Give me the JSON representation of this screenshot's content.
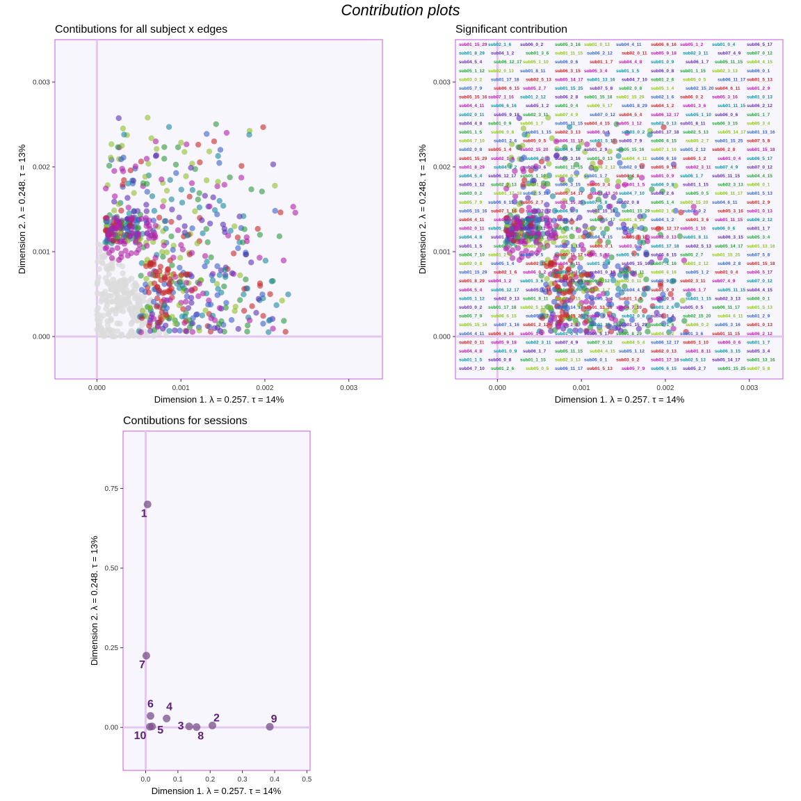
{
  "figure": {
    "title": "Contribution plots"
  },
  "chart_data": [
    {
      "id": "all",
      "type": "scatter",
      "title": "Contibutions for all subject x edges",
      "xlabel": "Dimension 1.   λ = 0.257.  τ = 14%",
      "ylabel": "Dimension 2.   λ = 0.248.  τ = 13%",
      "xlim": [
        -0.0005,
        0.0034
      ],
      "ylim": [
        -0.0005,
        0.0035
      ],
      "xticks": [
        "0.000",
        "0.001",
        "0.002",
        "0.003"
      ],
      "yticks": [
        "0.000",
        "0.001",
        "0.002",
        "0.003"
      ],
      "grid": false,
      "colors": [
        "#b21fa8",
        "#3a5fc8",
        "#2c9a3c",
        "#19879e",
        "#c62828",
        "#8fbf2a",
        "#5b2fb0"
      ],
      "grey_color": "#dcdcdc"
    },
    {
      "id": "sig",
      "type": "scatter",
      "title": "Significant contribution",
      "xlabel": "Dimension 1.   λ = 0.257.  τ = 14%",
      "ylabel": "Dimension 2.   λ = 0.248.  τ = 13%",
      "xlim": [
        -0.0005,
        0.0034
      ],
      "ylim": [
        -0.0005,
        0.0035
      ],
      "xticks": [
        "0.000",
        "0.001",
        "0.002",
        "0.003"
      ],
      "yticks": [
        "0.000",
        "0.001",
        "0.002",
        "0.003"
      ],
      "grid": false,
      "sample_labels": [
        "sub01_15_29",
        "sub02_1_6",
        "sub06_0_2",
        "sub05_3_16",
        "sub01_0_13",
        "sub04_4_11",
        "sub06_6_16",
        "sub05_1_2",
        "sub01_0_4",
        "sub06_5_17",
        "sub01_8_29",
        "sub04_1_2",
        "sub01_3_6",
        "sub01_11_15",
        "sub06_2_12",
        "sub02_0_11",
        "sub05_9_18",
        "sub02_3_11",
        "sub07_4_9",
        "sub07_0_12",
        "sub04_5_4",
        "sub06_12_17",
        "sub05_1_10",
        "sub06_0_6",
        "sub01_1_7",
        "sub04_4_8",
        "sub01_0_9",
        "sub06_1_7",
        "sub05_11_15",
        "sub04_4_15",
        "sub05_1_12",
        "sub02_0_13",
        "sub01_8_11",
        "sub06_3_15",
        "sub05_3_4",
        "sub01_1_5",
        "sub06_0_8",
        "sub01_1_15",
        "sub02_3_13",
        "sub06_0_1",
        "sub03_0_2",
        "sub01_17_18",
        "sub02_5_13",
        "sub05_14_17",
        "sub01_13_16",
        "sub04_7_10",
        "sub01_2_6",
        "sub05_0_5",
        "sub06_11_17",
        "sub01_5_13",
        "sub05_7_9",
        "sub06_6_15",
        "sub05_2_7",
        "sub01_15_25",
        "sub07_5_8",
        "sub02_0_8",
        "sub05_1_4",
        "sub02_15_20",
        "sub04_6_11",
        "sub01_2_9",
        "sub05_15_16",
        "sub07_1_16",
        "sub01_2_12",
        "sub06_2_8",
        "sub01_15_18"
      ]
    },
    {
      "id": "sessions",
      "type": "scatter",
      "title": "Contibutions for sessions",
      "xlabel": "Dimension 1.   λ = 0.257.  τ = 14%",
      "ylabel": "Dimension 2.   λ = 0.248.  τ = 13%",
      "xlim": [
        -0.07,
        0.51
      ],
      "ylim": [
        -0.135,
        0.93
      ],
      "xticks": [
        0.0,
        0.1,
        0.2,
        0.3,
        0.4,
        0.5
      ],
      "yticks": [
        0.0,
        0.25,
        0.5,
        0.75
      ],
      "xtick_labels": [
        "0.0",
        "0.1",
        "0.2",
        "0.3",
        "0.4",
        "0.5"
      ],
      "ytick_labels": [
        "0.00",
        "0.25",
        "0.50",
        "0.75"
      ],
      "grid": false,
      "point_color": "#7a4f88",
      "label_color": "#5b1f78",
      "points": [
        {
          "label": "1",
          "x": 0.006,
          "y": 0.7
        },
        {
          "label": "7",
          "x": 0.002,
          "y": 0.225
        },
        {
          "label": "6",
          "x": 0.015,
          "y": 0.036
        },
        {
          "label": "4",
          "x": 0.065,
          "y": 0.028
        },
        {
          "label": "2",
          "x": 0.207,
          "y": 0.006
        },
        {
          "label": "9",
          "x": 0.385,
          "y": 0.002
        },
        {
          "label": "3",
          "x": 0.135,
          "y": 0.003
        },
        {
          "label": "8",
          "x": 0.158,
          "y": 0.001
        },
        {
          "label": "5",
          "x": 0.02,
          "y": 0.003
        },
        {
          "label": "10",
          "x": 0.013,
          "y": 0.002
        }
      ]
    }
  ]
}
